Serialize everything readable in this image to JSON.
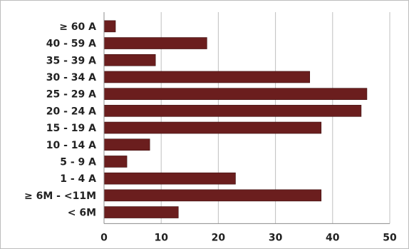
{
  "chart_data": {
    "type": "bar",
    "orientation": "horizontal",
    "categories": [
      "≥ 60 A",
      "40 - 59 A",
      "35 - 39 A",
      "30 - 34 A",
      "25 - 29 A",
      "20 - 24 A",
      "15 - 19 A",
      "10 - 14 A",
      "5 - 9 A",
      "1 - 4 A",
      "≥ 6M - <11M",
      "< 6M"
    ],
    "values": [
      2,
      18,
      9,
      36,
      46,
      45,
      38,
      8,
      4,
      23,
      38,
      13
    ],
    "xlim": [
      0,
      50
    ],
    "xticks": [
      "0",
      "10",
      "20",
      "30",
      "40",
      "50"
    ],
    "title": "",
    "xlabel": "",
    "ylabel": "",
    "grid": "vertical",
    "legend": "none",
    "colors": {
      "bar": "#6b1e1e",
      "bar_stroke": "#3d0f0f",
      "grid": "#bfbfbf",
      "axis": "#8c8c8c"
    }
  }
}
